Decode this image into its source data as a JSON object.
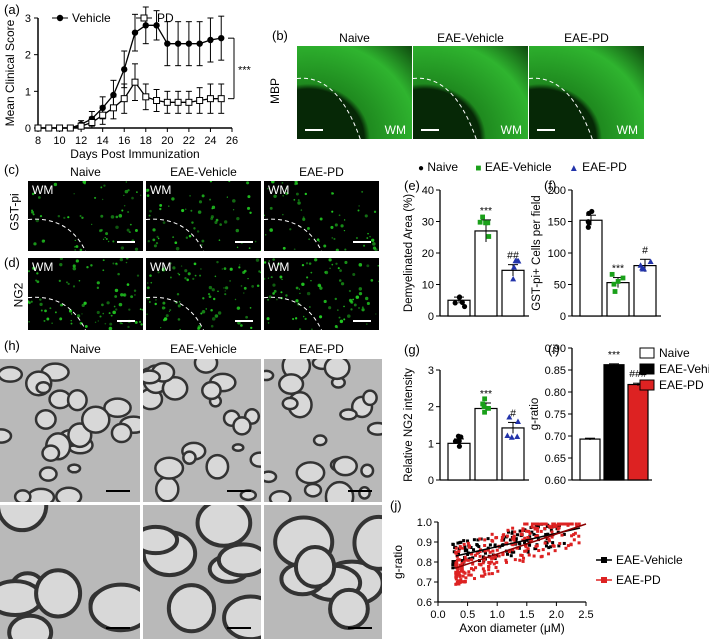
{
  "panels": {
    "a": {
      "label": "(a)",
      "legend": [
        {
          "name": "Vehicle",
          "marker": "filled-circle"
        },
        {
          "name": "PD",
          "marker": "open-square"
        }
      ],
      "significance": "***"
    },
    "b": {
      "label": "(b)",
      "columns": [
        "Naive",
        "EAE-Vehicle",
        "EAE-PD"
      ],
      "row_label": "MBP",
      "wm_label": "WM"
    },
    "c": {
      "label": "(c)",
      "columns": [
        "Naive",
        "EAE-Vehicle",
        "EAE-PD"
      ],
      "row_label": "GST-pi",
      "wm_label": "WM"
    },
    "d": {
      "label": "(d)",
      "row_label": "NG2",
      "wm_label": "WM"
    },
    "e": {
      "label": "(e)"
    },
    "f": {
      "label": "(f)"
    },
    "g": {
      "label": "(g)"
    },
    "h": {
      "label": "(h)",
      "columns": [
        "Naive",
        "EAE-Vehicle",
        "EAE-PD"
      ]
    },
    "i": {
      "label": "(i)"
    },
    "j": {
      "label": "(j)"
    }
  },
  "shared_legend": [
    {
      "name": "Naive",
      "marker": "●",
      "color": "#000000"
    },
    {
      "name": "EAE-Vehicle",
      "marker": "■",
      "color": "#1aa01a"
    },
    {
      "name": "EAE-PD",
      "marker": "▲",
      "color": "#2233aa"
    }
  ],
  "colors": {
    "vehicle_green": "#1aa01a",
    "pd_blue": "#2233aa",
    "pd_red": "#dd2222",
    "fluor": "#22cc22"
  },
  "chart_data": [
    {
      "id": "a",
      "type": "line",
      "xlabel": "Days Post Immunization",
      "ylabel": "Mean Clinical Score",
      "xlim": [
        8,
        26
      ],
      "ylim": [
        0,
        3
      ],
      "xticks": [
        8,
        10,
        12,
        14,
        16,
        18,
        20,
        22,
        24,
        26
      ],
      "yticks": [
        0,
        1,
        2,
        3
      ],
      "series": [
        {
          "name": "Vehicle",
          "x": [
            8,
            9,
            10,
            11,
            12,
            13,
            14,
            15,
            16,
            17,
            18,
            19,
            20,
            21,
            22,
            23,
            24,
            25
          ],
          "y": [
            0,
            0,
            0,
            0,
            0.1,
            0.25,
            0.55,
            0.9,
            1.6,
            2.6,
            2.8,
            2.8,
            2.3,
            2.3,
            2.3,
            2.3,
            2.4,
            2.45
          ],
          "err": [
            0,
            0,
            0,
            0,
            0.1,
            0.2,
            0.3,
            0.4,
            0.5,
            0.5,
            0.5,
            0.4,
            0.6,
            0.6,
            0.6,
            0.6,
            0.6,
            0.6
          ]
        },
        {
          "name": "PD",
          "x": [
            8,
            9,
            10,
            11,
            12,
            13,
            14,
            15,
            16,
            17,
            18,
            19,
            20,
            21,
            22,
            23,
            24,
            25
          ],
          "y": [
            0,
            0,
            0,
            0,
            0.05,
            0.15,
            0.35,
            0.55,
            0.8,
            1.25,
            0.85,
            0.75,
            0.7,
            0.7,
            0.7,
            0.75,
            0.8,
            0.8
          ],
          "err": [
            0,
            0,
            0,
            0,
            0.05,
            0.15,
            0.25,
            0.3,
            0.4,
            0.5,
            0.35,
            0.3,
            0.3,
            0.3,
            0.3,
            0.35,
            0.4,
            0.4
          ]
        }
      ]
    },
    {
      "id": "e",
      "type": "bar",
      "ylabel": "Demyelinated Area (%)",
      "ylim": [
        0,
        40
      ],
      "yticks": [
        0,
        10,
        20,
        30,
        40
      ],
      "categories": [
        "Naive",
        "EAE-Vehicle",
        "EAE-PD"
      ],
      "values": [
        5,
        27,
        14.5
      ],
      "err": [
        1,
        3.5,
        1.8
      ],
      "annotations": [
        "",
        "***",
        "##"
      ]
    },
    {
      "id": "f",
      "type": "bar",
      "ylabel": "GST-pi+ Cells per field",
      "ylim": [
        0,
        200
      ],
      "yticks": [
        0,
        50,
        100,
        150,
        200
      ],
      "categories": [
        "Naive",
        "EAE-Vehicle",
        "EAE-PD"
      ],
      "values": [
        152,
        53,
        80
      ],
      "err": [
        8,
        8,
        10
      ],
      "annotations": [
        "",
        "***",
        "#"
      ]
    },
    {
      "id": "g",
      "type": "bar",
      "ylabel": "Relative NG2 intensity",
      "ylim": [
        0,
        3
      ],
      "yticks": [
        0,
        1,
        2,
        3
      ],
      "categories": [
        "Naive",
        "EAE-Vehicle",
        "EAE-PD"
      ],
      "values": [
        1.0,
        1.95,
        1.42
      ],
      "err": [
        0.12,
        0.15,
        0.15
      ],
      "annotations": [
        "",
        "***",
        "#"
      ]
    },
    {
      "id": "i",
      "type": "bar",
      "ylabel": "g-ratio",
      "ylim": [
        0.6,
        0.9
      ],
      "yticks": [
        0.6,
        0.65,
        0.7,
        0.75,
        0.8,
        0.85,
        0.9
      ],
      "categories": [
        "Naive",
        "EAE-Vehicle",
        "EAE-PD"
      ],
      "values": [
        0.693,
        0.862,
        0.817
      ],
      "err": [
        0.002,
        0.002,
        0.003
      ],
      "annotations": [
        "",
        "***",
        "###"
      ],
      "legend": [
        "Naive",
        "EAE-Vehicle",
        "EAE-PD"
      ]
    },
    {
      "id": "j",
      "type": "scatter",
      "xlabel": "Axon diameter (μM)",
      "ylabel": "g-ratio",
      "xlim": [
        0,
        2.5
      ],
      "ylim": [
        0.6,
        1.0
      ],
      "xticks": [
        0,
        0.5,
        1,
        1.5,
        2,
        2.5
      ],
      "yticks": [
        0.6,
        0.7,
        0.8,
        0.9,
        1.0
      ],
      "series": [
        {
          "name": "EAE-Vehicle",
          "fit": [
            [
              0.3,
              0.83
            ],
            [
              2.4,
              0.97
            ]
          ]
        },
        {
          "name": "EAE-PD",
          "fit": [
            [
              0.3,
              0.77
            ],
            [
              2.5,
              0.99
            ]
          ]
        }
      ]
    }
  ]
}
